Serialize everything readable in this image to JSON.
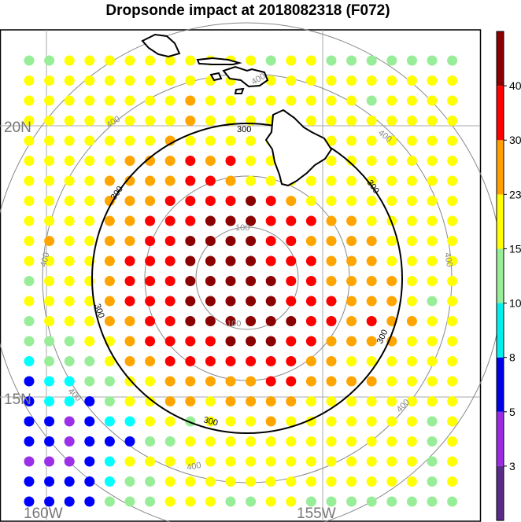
{
  "title": "Dropsonde impact at 2018082318 (F072)",
  "lat_labels": [
    "20N",
    "15N"
  ],
  "lon_labels": [
    "160W",
    "155W"
  ],
  "contour_labels": {
    "c100": "100",
    "c300": "300",
    "c400": "400"
  },
  "colorbar": {
    "levels": [
      "3",
      "5",
      "8",
      "10",
      "15",
      "23",
      "30",
      "40"
    ],
    "colors": [
      "#5a2a8a",
      "#9a2be2",
      "#0000e6",
      "#00f0f0",
      "#98ee98",
      "#ffff00",
      "#ff9f00",
      "#ff0000",
      "#8b0000"
    ]
  },
  "palette": {
    "darkred": "#8b0000",
    "red": "#ff0000",
    "orange": "#ffa500",
    "yellow": "#ffff00",
    "lightgreen": "#98ee98",
    "cyan": "#00ffff",
    "blue": "#0000ff",
    "purple": "#9b30e8"
  },
  "dot_grid": {
    "rows": [
      "GGYYYYYYYYYYGYYGGGGGGG",
      "YYYYYYYYYYYYYYYYYYYYYY",
      "YYYYYYYYOYYYYYYYYGYYYY",
      "YYYYYYYYOYYYYYYYYYYYYY",
      "YYYYYYYOYYYYYYYYYYYYYY",
      "YYYYYOOORORYYYYYYYYYYY",
      "YYYYOOOORROYYYYYYYYYYY",
      "YYYYOOORRRRDROYYYYYYYY",
      "YYYYOORRRDDDRRROOYYYYY",
      "YOYYOORRDDDDRROOOOYYYY",
      "YYYYORRRDDDDRRROOOYYYY",
      "GYYYORRRDDDDDRROOOOYYY",
      "YYYYORRRDDDDDRRROOOYGY",
      "GYYYOORRDDDDDDRROROOYY",
      "GGGYYORRRRDDDRROOOOYYY",
      "CGGGYOORRRRRRROOYYYYYY",
      "BCCGGYYOOOOORROOOOYYYY",
      "BCCBGYYOOYOOOOYYYYYYYY",
      "BBPBCCYYGYYYOYYYYYYYGY",
      "BBPBBBGGYYYYYYYYYYYYGY",
      "PPPBCYYYYYYYYYYYYYYYGY",
      "BBBBCGGYYYYYYYYYYYYYGY",
      "BBBBGGGYYYGGYYGGGGGGGG"
    ]
  }
}
